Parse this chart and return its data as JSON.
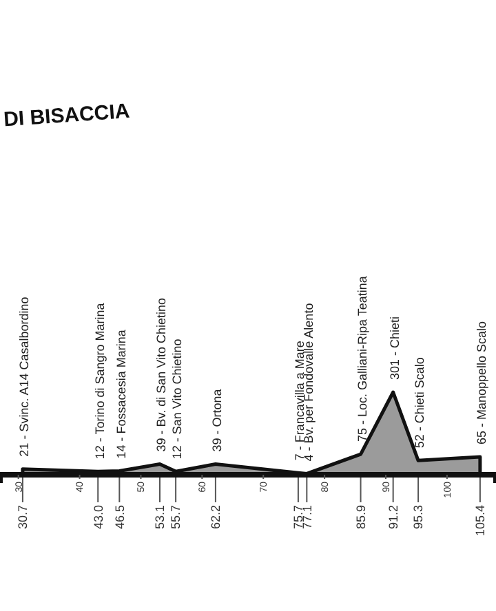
{
  "chart_data": {
    "type": "area",
    "title": "DI BISACCIA",
    "x": [
      30.7,
      43.0,
      46.5,
      53.1,
      55.7,
      62.2,
      75.7,
      77.1,
      85.9,
      91.2,
      95.3,
      105.4
    ],
    "series": [
      {
        "color": "#9b9b9b",
        "values": [
          21,
          12,
          14,
          39,
          12,
          39,
          7,
          4,
          75,
          301,
          52,
          65
        ],
        "value_labels": [
          "21 - Svinc. A14 Casalbordino",
          "12 - Torino di Sangro Marina",
          "14 - Fossacesia Marina",
          "39 - Bv. di San Vito Chietino",
          "12 - San Vito Chietino",
          "39 - Ortona",
          "7 - Francavilla a Mare",
          "4 - Bv. per Fondovalle Alento",
          "75 - Loc. Galliani-Ripa Teatina",
          "301 - Chieti",
          "52 - Chieti Scalo",
          "65 - Manoppello Scalo"
        ]
      }
    ],
    "xlim": [
      27,
      108
    ],
    "xticks": [
      30,
      40,
      50,
      60,
      70,
      80,
      90,
      100
    ],
    "tick_labels": "x",
    "grid": false,
    "annotations": [
      {
        "text": "30.7",
        "x": 30.7,
        "y": 0
      },
      {
        "text": "43.0",
        "x": 43.0,
        "y": 0
      },
      {
        "text": "46.5",
        "x": 46.5,
        "y": 0
      },
      {
        "text": "53.1",
        "x": 53.1,
        "y": 0
      },
      {
        "text": "55.7",
        "x": 55.7,
        "y": 0
      },
      {
        "text": "62.2",
        "x": 62.2,
        "y": 0
      },
      {
        "text": "75.7",
        "x": 75.7,
        "y": 0
      },
      {
        "text": "77.1",
        "x": 77.1,
        "y": 0
      },
      {
        "text": "85.9",
        "x": 85.9,
        "y": 0
      },
      {
        "text": "91.2",
        "x": 91.2,
        "y": 0
      },
      {
        "text": "95.3",
        "x": 95.3,
        "y": 0
      },
      {
        "text": "105.4",
        "x": 105.4,
        "y": 0
      }
    ]
  }
}
